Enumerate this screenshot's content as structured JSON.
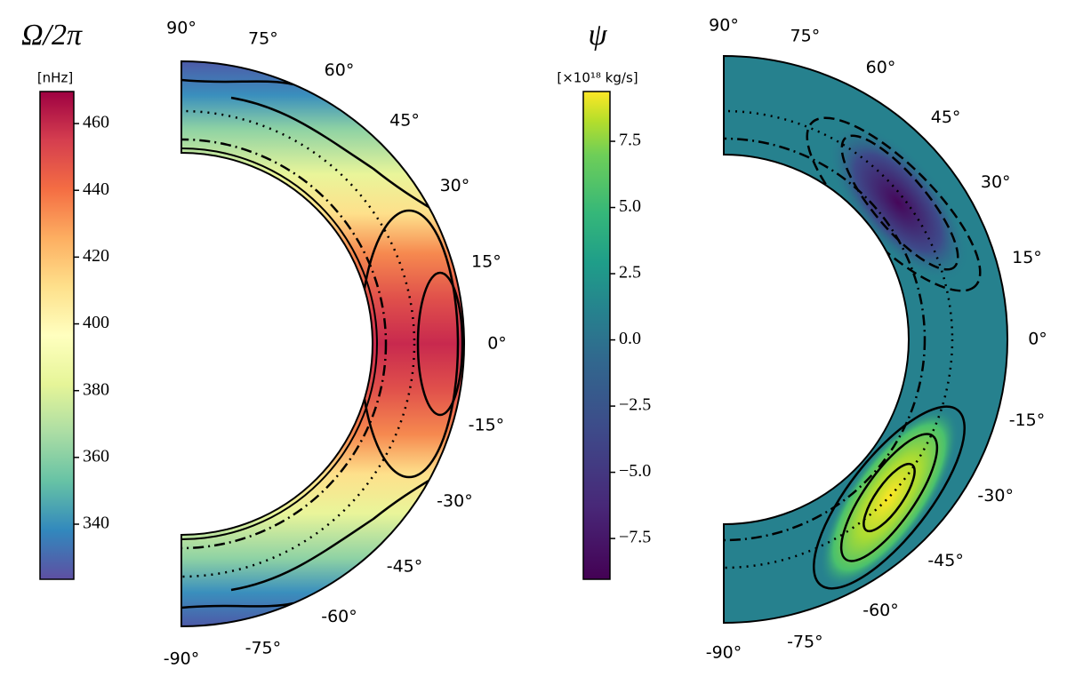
{
  "chart_data": [
    {
      "type": "meridional-contour",
      "colorbar": {
        "title": "Ω/2π",
        "unit": "[nHz]",
        "lim": [
          323.5,
          469.6
        ],
        "ticks": [
          340,
          360,
          380,
          400,
          420,
          440,
          460
        ]
      },
      "latitude_ticks": [
        {
          "value": 90,
          "label": "90°"
        },
        {
          "value": 75,
          "label": "75°"
        },
        {
          "value": 60,
          "label": "60°"
        },
        {
          "value": 45,
          "label": "45°"
        },
        {
          "value": 30,
          "label": "30°"
        },
        {
          "value": 15,
          "label": "15°"
        },
        {
          "value": 0,
          "label": "0°"
        },
        {
          "value": -15,
          "label": "-15°"
        },
        {
          "value": -30,
          "label": "-30°"
        },
        {
          "value": -45,
          "label": "-45°"
        },
        {
          "value": -60,
          "label": "-60°"
        },
        {
          "value": -75,
          "label": "-75°"
        },
        {
          "value": -90,
          "label": "-90°"
        }
      ]
    },
    {
      "type": "meridional-contour",
      "colorbar": {
        "title": "ψ",
        "unit": "[×10¹⁸ kg/s]",
        "lim": [
          -9.04,
          9.38
        ],
        "ticks": [
          {
            "value": -7.5,
            "label": "−7.5"
          },
          {
            "value": -5,
            "label": "−5.0"
          },
          {
            "value": -2.5,
            "label": "−2.5"
          },
          {
            "value": 0,
            "label": "0.0"
          },
          2.5,
          {
            "value": 5,
            "label": "5.0"
          },
          7.5
        ]
      },
      "latitude_ticks": [
        {
          "value": 90,
          "label": "90°"
        },
        {
          "value": 75,
          "label": "75°"
        },
        {
          "value": 60,
          "label": "60°"
        },
        {
          "value": 45,
          "label": "45°"
        },
        {
          "value": 30,
          "label": "30°"
        },
        {
          "value": 15,
          "label": "15°"
        },
        {
          "value": 0,
          "label": "0°"
        },
        {
          "value": -15,
          "label": "-15°"
        },
        {
          "value": -30,
          "label": "-30°"
        },
        {
          "value": -45,
          "label": "-45°"
        },
        {
          "value": -60,
          "label": "-60°"
        },
        {
          "value": -75,
          "label": "-75°"
        },
        {
          "value": -90,
          "label": "-90°"
        }
      ]
    }
  ]
}
